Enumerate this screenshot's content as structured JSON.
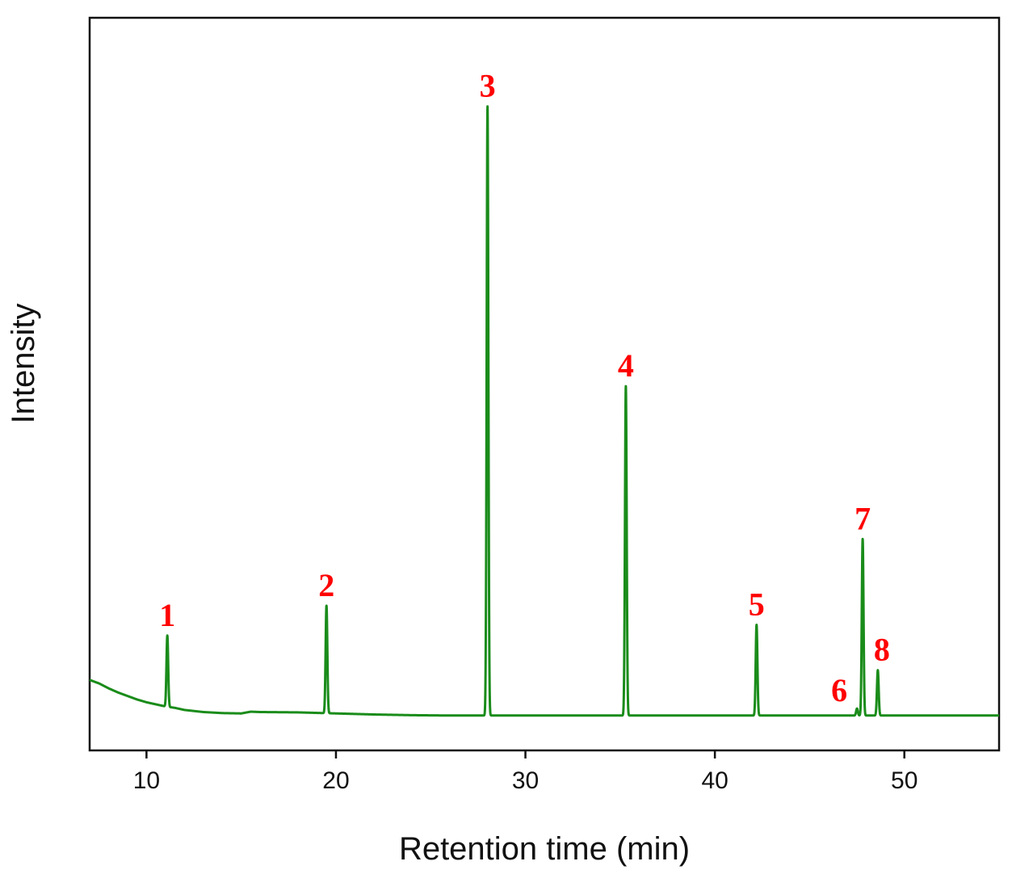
{
  "chart_data": {
    "type": "line",
    "title": "",
    "xlabel": "Retention time (min)",
    "ylabel": "Intensity",
    "xlim": [
      7,
      55
    ],
    "ylim": [
      -5,
      100
    ],
    "x_ticks": [
      10,
      20,
      30,
      40,
      50
    ],
    "y_ticks_shown": false,
    "grid": false,
    "legend": "none",
    "colors": {
      "trace": "#1a8c1a",
      "peak_labels": "#ff0000",
      "axes": "#111111"
    },
    "baseline": {
      "x": [
        7.0,
        7.5,
        8.0,
        8.5,
        9.0,
        9.5,
        10.0,
        10.5,
        11.0,
        11.5,
        12.0,
        13.0,
        14.0,
        15.0,
        15.5,
        16.0,
        18.0,
        20.0,
        22.0,
        24.0,
        26.0,
        55.0
      ],
      "y": [
        5.1,
        4.6,
        3.9,
        3.3,
        2.8,
        2.3,
        1.9,
        1.6,
        1.3,
        1.1,
        0.8,
        0.5,
        0.35,
        0.3,
        0.55,
        0.5,
        0.45,
        0.3,
        0.15,
        0.05,
        0.0,
        0.0
      ]
    },
    "peaks": [
      {
        "label": "1",
        "rt": 11.1,
        "height": 10.2
      },
      {
        "label": "2",
        "rt": 19.5,
        "height": 15.4
      },
      {
        "label": "3",
        "rt": 28.0,
        "height": 87.3
      },
      {
        "label": "4",
        "rt": 35.3,
        "height": 47.2
      },
      {
        "label": "5",
        "rt": 42.2,
        "height": 13.0
      },
      {
        "label": "6",
        "rt": 47.5,
        "height": 1.0
      },
      {
        "label": "7",
        "rt": 47.8,
        "height": 25.3
      },
      {
        "label": "8",
        "rt": 48.6,
        "height": 6.5
      }
    ]
  }
}
